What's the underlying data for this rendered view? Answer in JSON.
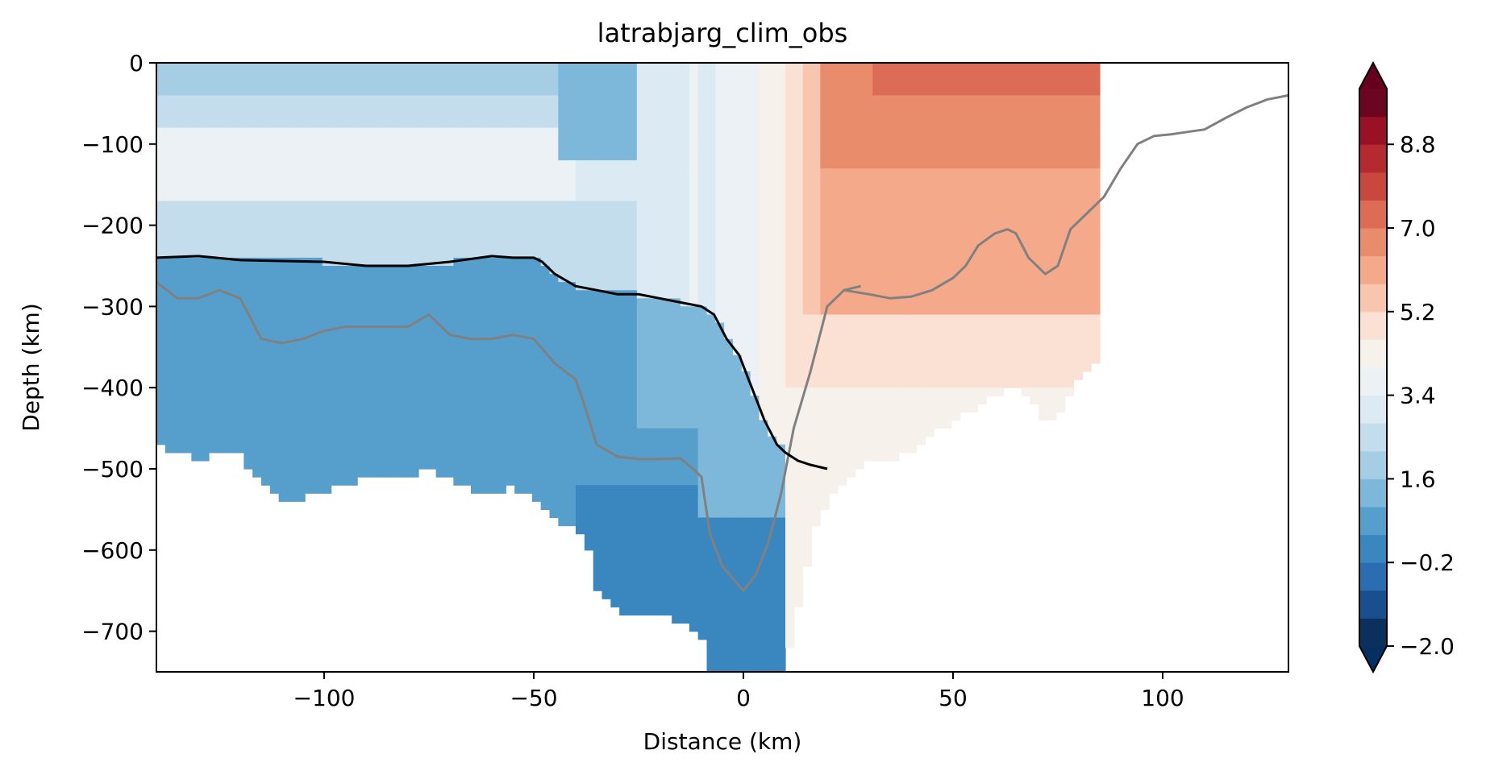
{
  "chart_data": {
    "type": "filled-contour section",
    "title": "latrabjarg_clim_obs",
    "xlabel": "Distance (km)",
    "ylabel": "Depth (km)",
    "xlim": [
      -140,
      130
    ],
    "ylim": [
      -750,
      0
    ],
    "xticks": [
      -100,
      -50,
      0,
      50,
      100
    ],
    "xtick_labels": [
      "−100",
      "−50",
      "0",
      "50",
      "100"
    ],
    "yticks": [
      0,
      -100,
      -200,
      -300,
      -400,
      -500,
      -600,
      -700
    ],
    "ytick_labels": [
      "0",
      "−100",
      "−200",
      "−300",
      "−400",
      "−500",
      "−600",
      "−700"
    ],
    "colorbar": {
      "cmap": "RdBu_r",
      "extend": "both",
      "levels": [
        -2.0,
        -1.4,
        -0.8,
        -0.2,
        0.4,
        1.0,
        1.6,
        2.2,
        2.8,
        3.4,
        4.0,
        4.6,
        5.2,
        5.8,
        6.4,
        7.0,
        7.6,
        8.2,
        8.8,
        9.4,
        10.0
      ],
      "colors": [
        "#0b305e",
        "#194f8f",
        "#2a6db1",
        "#3a87bf",
        "#569fcc",
        "#7db8da",
        "#a5cde3",
        "#c4dded",
        "#dbeaf3",
        "#ecf1f5",
        "#f7f1ec",
        "#fbe0d4",
        "#f8c5ae",
        "#f4aa8a",
        "#e88c6c",
        "#dc6c56",
        "#c9483d",
        "#b42a30",
        "#9a1024",
        "#6c0620"
      ],
      "under_color": "#053061",
      "over_color": "#67001f",
      "tick_values": [
        -2.0,
        -0.2,
        1.6,
        3.4,
        5.2,
        7.0,
        8.8
      ],
      "tick_labels": [
        "−2.0",
        "−0.2",
        "1.6",
        "3.4",
        "5.2",
        "7.0",
        "8.8"
      ]
    },
    "bottom_profile_black": {
      "x": [
        -140,
        -130,
        -120,
        -110,
        -100,
        -90,
        -80,
        -70,
        -60,
        -55,
        -50,
        -48,
        -45,
        -40,
        -35,
        -30,
        -25,
        -20,
        -15,
        -10,
        -7,
        -4,
        -1,
        2,
        5,
        8,
        10,
        13,
        16,
        20
      ],
      "y": [
        -240,
        -238,
        -243,
        -244,
        -245,
        -250,
        -250,
        -245,
        -238,
        -240,
        -240,
        -245,
        -260,
        -275,
        -280,
        -285,
        -285,
        -290,
        -295,
        -300,
        -310,
        -340,
        -360,
        -400,
        -440,
        -470,
        -480,
        -490,
        -495,
        -500
      ]
    },
    "gray_line_left": {
      "x": [
        -140,
        -135,
        -130,
        -125,
        -120,
        -115,
        -110,
        -105,
        -100,
        -95,
        -90,
        -85,
        -80,
        -75,
        -70,
        -65,
        -60,
        -55,
        -50,
        -45,
        -40,
        -38,
        -35,
        -30,
        -25,
        -20,
        -15,
        -12,
        -10,
        -8,
        -5,
        0,
        3,
        6,
        9,
        12,
        16,
        20,
        24,
        28
      ],
      "y": [
        -270,
        -290,
        -290,
        -280,
        -290,
        -340,
        -345,
        -340,
        -330,
        -325,
        -325,
        -325,
        -325,
        -310,
        -335,
        -340,
        -340,
        -335,
        -340,
        -370,
        -390,
        -420,
        -470,
        -485,
        -488,
        -488,
        -487,
        -500,
        -510,
        -580,
        -620,
        -650,
        -630,
        -590,
        -530,
        -450,
        -380,
        -300,
        -280,
        -275
      ]
    },
    "gray_line_right": {
      "x": [
        24,
        30,
        35,
        40,
        45,
        50,
        53,
        56,
        60,
        63,
        65,
        68,
        72,
        75,
        78,
        82,
        86,
        90,
        94,
        98,
        102,
        106,
        110,
        115,
        120,
        125,
        130
      ],
      "y": [
        -280,
        -285,
        -290,
        -288,
        -280,
        -265,
        -250,
        -225,
        -210,
        -205,
        -210,
        -240,
        -260,
        -250,
        -205,
        -185,
        -165,
        -130,
        -100,
        -90,
        -88,
        -85,
        -82,
        -68,
        -55,
        -45,
        -40
      ]
    },
    "data_extent_right_km": 85,
    "temperature_field_description": [
      {
        "region": "surface left",
        "approx_value": 1.6
      },
      {
        "region": "-100 m left warm lens",
        "approx_value": 4.0
      },
      {
        "region": "deep left",
        "approx_value": 1.0
      },
      {
        "region": "trough bottom",
        "approx_value": 0.4
      },
      {
        "region": "right shelf upper",
        "approx_value": 7.0
      },
      {
        "region": "right shelf middle",
        "approx_value": 5.8
      },
      {
        "region": "right shelf deep",
        "approx_value": 4.6
      }
    ]
  }
}
